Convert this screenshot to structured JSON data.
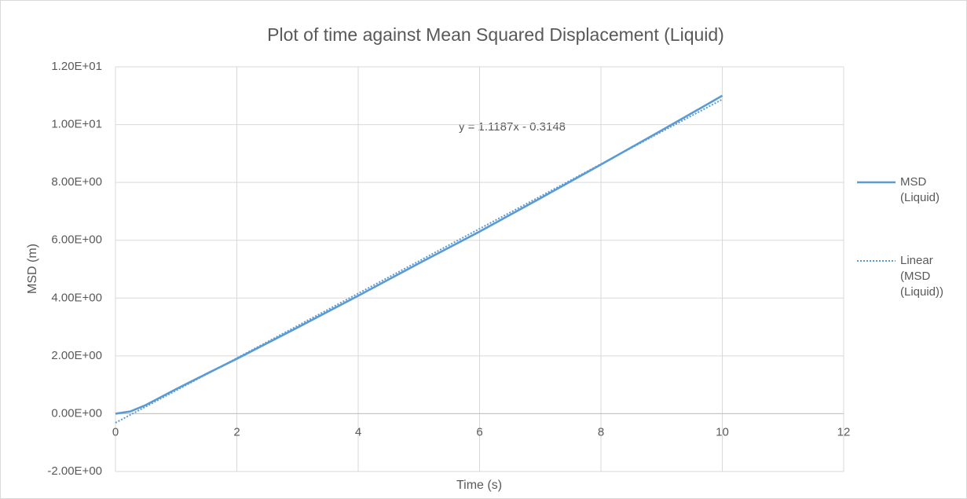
{
  "chart_data": {
    "type": "line",
    "title": "Plot of time against Mean Squared Displacement (Liquid)",
    "x_label": "Time (s)",
    "y_label": "MSD (m)",
    "annotation": "y = 1.1187x - 0.3148",
    "xlim": [
      0,
      12
    ],
    "xticks": [
      0,
      2,
      4,
      6,
      8,
      10,
      12
    ],
    "ylim": [
      -2,
      12
    ],
    "yticks": [
      {
        "value": -2,
        "label": "-2.00E+00"
      },
      {
        "value": 0,
        "label": "0.00E+00"
      },
      {
        "value": 2,
        "label": "2.00E+00"
      },
      {
        "value": 4,
        "label": "4.00E+00"
      },
      {
        "value": 6,
        "label": "6.00E+00"
      },
      {
        "value": 8,
        "label": "8.00E+00"
      },
      {
        "value": 10,
        "label": "1.00E+01"
      },
      {
        "value": 12,
        "label": "1.20E+01"
      }
    ],
    "grid": true,
    "legend": "right",
    "series": [
      {
        "name": "MSD (Liquid)",
        "color": "#5b9bd5",
        "style": "solid",
        "x": [
          0,
          0.25,
          0.5,
          1,
          1.5,
          2,
          3,
          4,
          5,
          6,
          7,
          8,
          9,
          10
        ],
        "values": [
          0,
          0.08,
          0.3,
          0.85,
          1.38,
          1.9,
          2.98,
          4.08,
          5.2,
          6.3,
          7.45,
          8.62,
          9.8,
          11.0
        ]
      },
      {
        "name": "Linear (MSD (Liquid))",
        "color": "#5b9bd5",
        "style": "dotted",
        "x": [
          0,
          10
        ],
        "values": [
          -0.3148,
          10.8722
        ]
      }
    ]
  }
}
